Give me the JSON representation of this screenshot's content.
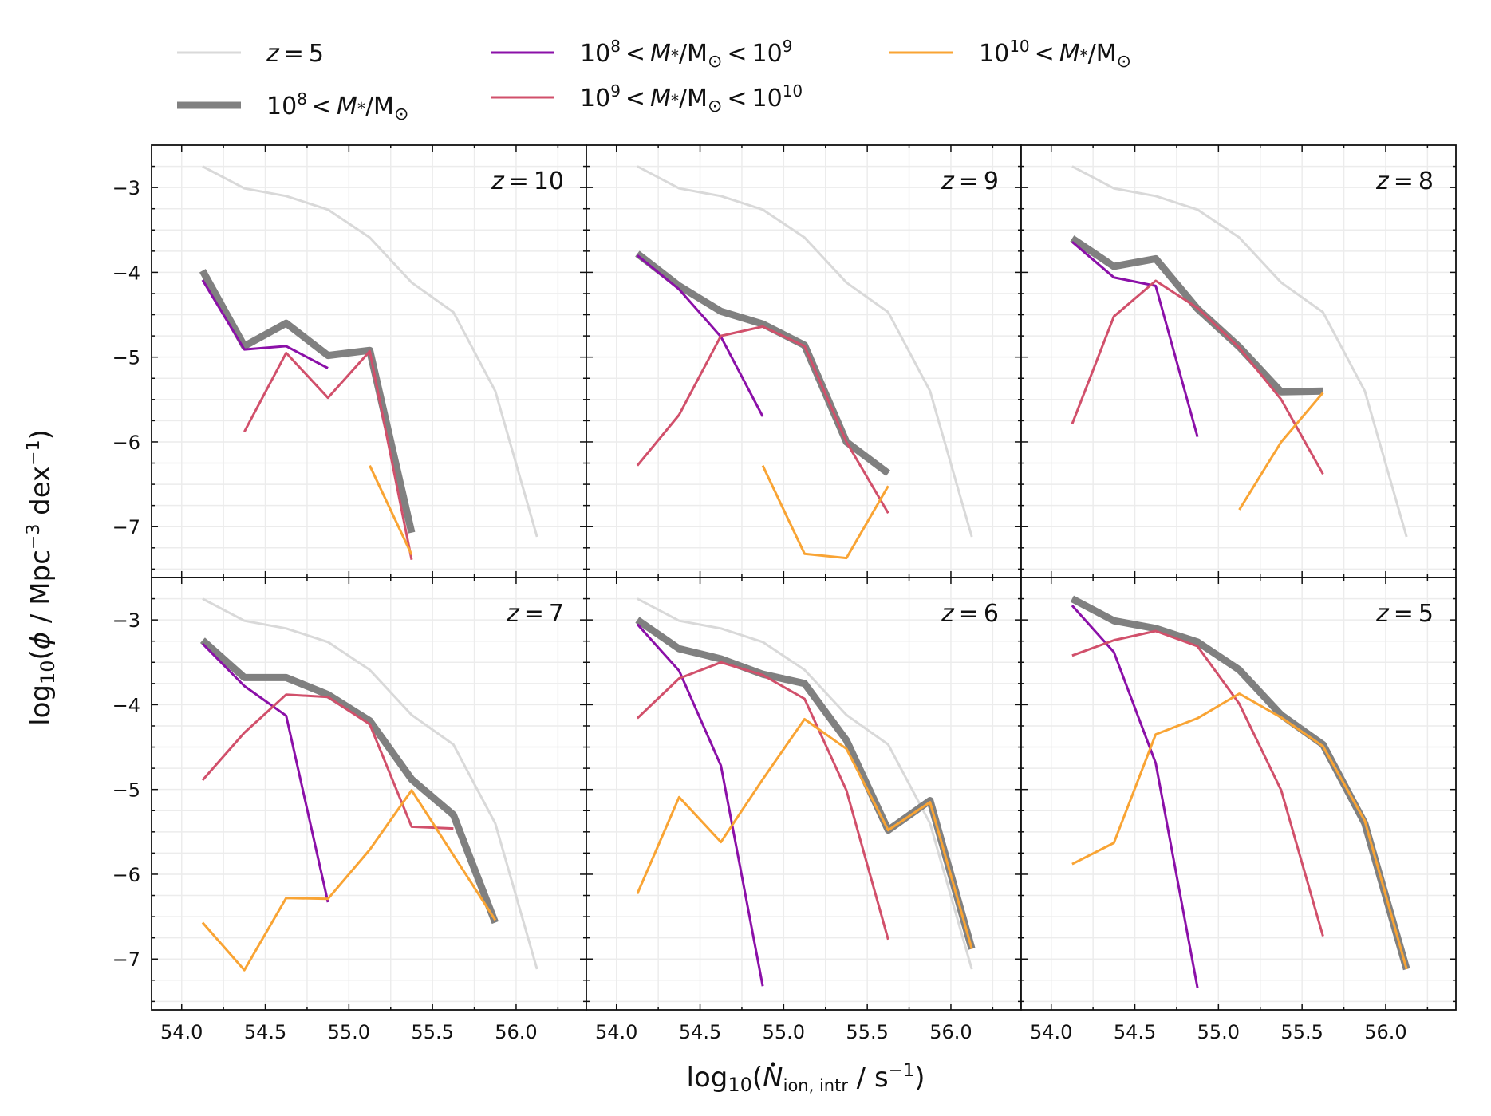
{
  "chart_data": {
    "type": "line",
    "layout": "2x3 grid, shared axes",
    "xlabel": "log₁₀(Ṅ_ion,intr / s⁻¹)",
    "xlabel_parts": {
      "prefix": "log",
      "sub10": "10",
      "open": "(",
      "Ndot": "N",
      "sub": "ion, intr",
      "mid": " / s",
      "sup": "−1",
      "close": ")"
    },
    "ylabel": "log₁₀(φ / Mpc⁻³ dex⁻¹)",
    "ylabel_parts": {
      "prefix": "log",
      "sub10": "10",
      "open": "(",
      "phi": "ϕ",
      "mid1": " / Mpc",
      "sup1": "−3",
      "mid2": " dex",
      "sup2": "−1",
      "close": ")"
    },
    "xlim": [
      53.82,
      56.42
    ],
    "ylim": [
      -7.6,
      -2.5
    ],
    "xticks": [
      54.0,
      54.5,
      55.0,
      55.5,
      56.0
    ],
    "xtick_labels": [
      "54.0",
      "54.5",
      "55.0",
      "55.5",
      "56.0"
    ],
    "yticks": [
      -3,
      -4,
      -5,
      -6,
      -7
    ],
    "ytick_labels": [
      "−3",
      "−4",
      "−5",
      "−6",
      "−7"
    ],
    "grid": true,
    "legend": {
      "placement": "top, above panels",
      "entries": [
        {
          "key": "ref",
          "prefix": "",
          "label": "z = 5",
          "color": "#d9d9d9"
        },
        {
          "key": "total",
          "exp": "8",
          "text": "10⁸ < M*/M☉",
          "color": "#808080"
        },
        {
          "key": "low",
          "exp": "8",
          "exp2": "9",
          "text": "10⁸ < M*/M☉ < 10⁹",
          "color": "#8b10a8"
        },
        {
          "key": "mid",
          "exp": "9",
          "exp2": "10",
          "text": "10⁹ < M*/M☉ < 10¹⁰",
          "color": "#d1506b"
        },
        {
          "key": "high",
          "exp": "10",
          "text": "10¹⁰ < M*/M☉",
          "color": "#f9a434"
        }
      ]
    },
    "reference_series": {
      "name": "z = 5",
      "x": [
        54.125,
        54.375,
        54.625,
        54.875,
        55.125,
        55.375,
        55.625,
        55.875,
        56.125
      ],
      "y": [
        -2.75,
        -3.01,
        -3.1,
        -3.26,
        -3.59,
        -4.12,
        -4.47,
        -5.4,
        -7.12
      ]
    },
    "panels": [
      {
        "label": "z = 10",
        "z": "10",
        "series": [
          {
            "key": "total",
            "x": [
              54.125,
              54.375,
              54.625,
              54.875,
              55.125,
              55.375
            ],
            "y": [
              -3.98,
              -4.87,
              -4.6,
              -4.98,
              -4.92,
              -7.07
            ]
          },
          {
            "key": "low",
            "x": [
              54.125,
              54.375,
              54.625,
              54.875
            ],
            "y": [
              -4.09,
              -4.91,
              -4.87,
              -5.13
            ]
          },
          {
            "key": "mid",
            "x": [
              54.375,
              54.625,
              54.875,
              55.125,
              55.375
            ],
            "y": [
              -5.88,
              -4.95,
              -5.48,
              -4.93,
              -7.39
            ]
          },
          {
            "key": "high",
            "x": [
              55.125,
              55.375
            ],
            "y": [
              -6.28,
              -7.33
            ]
          }
        ]
      },
      {
        "label": "z = 9",
        "z": "9",
        "series": [
          {
            "key": "total",
            "x": [
              54.125,
              54.375,
              54.625,
              54.875,
              55.125,
              55.375,
              55.625
            ],
            "y": [
              -3.78,
              -4.16,
              -4.46,
              -4.61,
              -4.86,
              -6.0,
              -6.37
            ]
          },
          {
            "key": "low",
            "x": [
              54.125,
              54.375,
              54.625,
              54.875
            ],
            "y": [
              -3.8,
              -4.2,
              -4.76,
              -5.7
            ]
          },
          {
            "key": "mid",
            "x": [
              54.125,
              54.375,
              54.625,
              54.875,
              55.125,
              55.375,
              55.625
            ],
            "y": [
              -6.28,
              -5.68,
              -4.75,
              -4.64,
              -4.87,
              -6.0,
              -6.84
            ]
          },
          {
            "key": "high",
            "x": [
              54.875,
              55.125,
              55.375,
              55.625
            ],
            "y": [
              -6.28,
              -7.32,
              -7.37,
              -6.52
            ]
          }
        ]
      },
      {
        "label": "z = 8",
        "z": "8",
        "series": [
          {
            "key": "total",
            "x": [
              54.125,
              54.375,
              54.625,
              54.875,
              55.125,
              55.375,
              55.625
            ],
            "y": [
              -3.6,
              -3.93,
              -3.84,
              -4.43,
              -4.88,
              -5.41,
              -5.4
            ]
          },
          {
            "key": "low",
            "x": [
              54.125,
              54.375,
              54.625,
              54.875
            ],
            "y": [
              -3.64,
              -4.06,
              -4.16,
              -5.94
            ]
          },
          {
            "key": "mid",
            "x": [
              54.125,
              54.375,
              54.625,
              54.875,
              55.125,
              55.375,
              55.625
            ],
            "y": [
              -5.79,
              -4.52,
              -4.1,
              -4.42,
              -4.89,
              -5.5,
              -6.38
            ]
          },
          {
            "key": "high",
            "x": [
              55.125,
              55.375,
              55.625
            ],
            "y": [
              -6.8,
              -6.0,
              -5.42
            ]
          }
        ]
      },
      {
        "label": "z = 7",
        "z": "7",
        "series": [
          {
            "key": "total",
            "x": [
              54.125,
              54.375,
              54.625,
              54.875,
              55.125,
              55.375,
              55.625,
              55.875
            ],
            "y": [
              -3.24,
              -3.68,
              -3.68,
              -3.88,
              -4.19,
              -4.88,
              -5.3,
              -6.57
            ]
          },
          {
            "key": "low",
            "x": [
              54.125,
              54.375,
              54.625,
              54.875
            ],
            "y": [
              -3.28,
              -3.78,
              -4.13,
              -6.33
            ]
          },
          {
            "key": "mid",
            "x": [
              54.125,
              54.375,
              54.625,
              54.875,
              55.125,
              55.375,
              55.625
            ],
            "y": [
              -4.89,
              -4.33,
              -3.88,
              -3.91,
              -4.23,
              -5.44,
              -5.46
            ]
          },
          {
            "key": "high",
            "x": [
              54.125,
              54.375,
              54.625,
              54.875,
              55.125,
              55.375,
              55.875
            ],
            "y": [
              -6.57,
              -7.13,
              -6.28,
              -6.29,
              -5.71,
              -5.01,
              -6.54
            ]
          }
        ]
      },
      {
        "label": "z = 6",
        "z": "6",
        "series": [
          {
            "key": "total",
            "x": [
              54.125,
              54.375,
              54.625,
              54.875,
              55.125,
              55.375,
              55.625,
              55.875,
              56.125
            ],
            "y": [
              -3.0,
              -3.34,
              -3.46,
              -3.64,
              -3.75,
              -4.42,
              -5.48,
              -5.13,
              -6.88
            ]
          },
          {
            "key": "low",
            "x": [
              54.125,
              54.375,
              54.625,
              54.875
            ],
            "y": [
              -3.05,
              -3.6,
              -4.72,
              -7.32
            ]
          },
          {
            "key": "mid",
            "x": [
              54.125,
              54.375,
              54.625,
              54.875,
              55.125,
              55.375,
              55.625
            ],
            "y": [
              -4.16,
              -3.69,
              -3.5,
              -3.65,
              -3.93,
              -5.01,
              -6.77
            ]
          },
          {
            "key": "high",
            "x": [
              54.125,
              54.375,
              54.625,
              54.875,
              55.125,
              55.375,
              55.625,
              55.875,
              56.125
            ],
            "y": [
              -6.23,
              -5.09,
              -5.62,
              -4.88,
              -4.17,
              -4.52,
              -5.48,
              -5.15,
              -6.88
            ]
          }
        ]
      },
      {
        "label": "z = 5",
        "z": "5",
        "series": [
          {
            "key": "total",
            "x": [
              54.125,
              54.375,
              54.625,
              54.875,
              55.125,
              55.375,
              55.625,
              55.875,
              56.125
            ],
            "y": [
              -2.75,
              -3.01,
              -3.1,
              -3.26,
              -3.59,
              -4.12,
              -4.47,
              -5.4,
              -7.12
            ]
          },
          {
            "key": "low",
            "x": [
              54.125,
              54.375,
              54.625,
              54.875
            ],
            "y": [
              -2.83,
              -3.38,
              -4.69,
              -7.34
            ]
          },
          {
            "key": "mid",
            "x": [
              54.125,
              54.375,
              54.625,
              54.875,
              55.125,
              55.375,
              55.625
            ],
            "y": [
              -3.42,
              -3.24,
              -3.13,
              -3.31,
              -3.99,
              -5.01,
              -6.73
            ]
          },
          {
            "key": "high",
            "x": [
              54.125,
              54.375,
              54.625,
              54.875,
              55.125,
              55.375,
              55.625,
              55.875,
              56.125
            ],
            "y": [
              -5.88,
              -5.63,
              -4.35,
              -4.16,
              -3.87,
              -4.15,
              -4.49,
              -5.37,
              -7.12
            ]
          }
        ]
      }
    ]
  }
}
